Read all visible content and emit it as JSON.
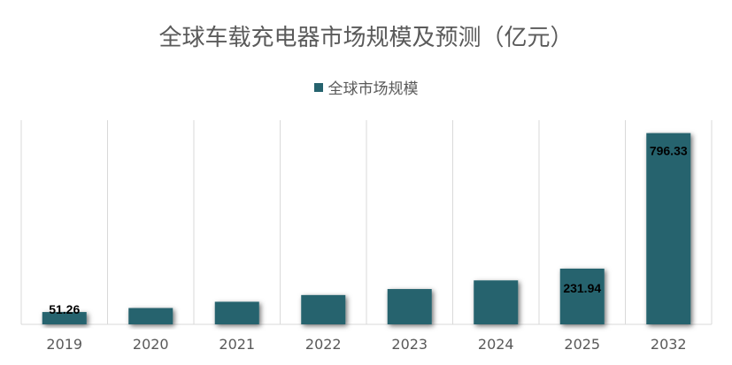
{
  "chart_data": {
    "type": "bar",
    "title": "全球车载充电器市场规模及预测（亿元）",
    "xlabel": "",
    "ylabel": "",
    "legend_position": "top-center",
    "grid": "vertical-only",
    "ylim": [
      0,
      850
    ],
    "categories": [
      "2019",
      "2020",
      "2021",
      "2022",
      "2023",
      "2024",
      "2025",
      "2032"
    ],
    "series": [
      {
        "name": "全球市场规模",
        "color": "#26636e",
        "values": [
          51.26,
          68,
          94,
          122,
          147,
          183,
          231.94,
          796.33
        ],
        "data_labels": [
          "51.26",
          "",
          "",
          "",
          "",
          "",
          "231.94",
          "796.33"
        ]
      }
    ]
  }
}
